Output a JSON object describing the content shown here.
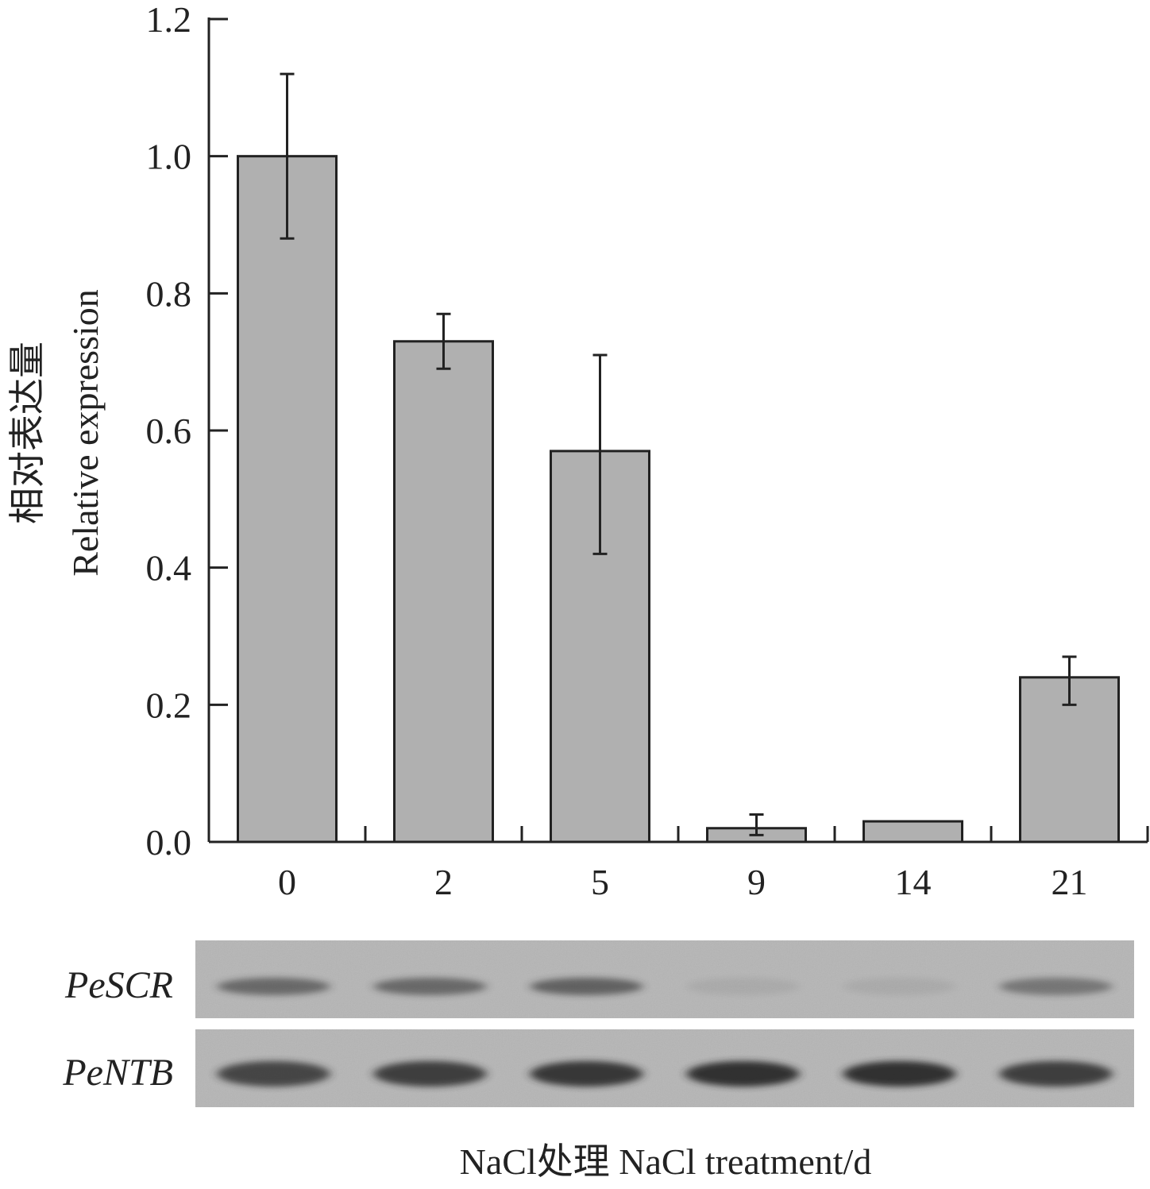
{
  "chart_data": {
    "type": "bar",
    "categories": [
      "0",
      "2",
      "5",
      "9",
      "14",
      "21"
    ],
    "values": [
      1.0,
      0.73,
      0.57,
      0.02,
      0.03,
      0.24
    ],
    "error_bars": [
      [
        0.88,
        1.12
      ],
      [
        0.69,
        0.77
      ],
      [
        0.42,
        0.71
      ],
      [
        0.01,
        0.04
      ],
      [
        0.03,
        0.03
      ],
      [
        0.2,
        0.27
      ]
    ],
    "ylim": [
      0,
      1.2
    ],
    "yticks": [
      "0.0",
      "0.2",
      "0.4",
      "0.6",
      "0.8",
      "1.0",
      "1.2"
    ],
    "ylabel_cn": "相对表达量",
    "ylabel_en": "Relative expression",
    "xlabel": "NaCl处理  NaCl treatment/d",
    "bar_color": "#b0b0b0",
    "grid": false,
    "legend": "none"
  },
  "gel": {
    "rows": [
      {
        "label": "PeSCR",
        "band_intensity": [
          0.55,
          0.55,
          0.6,
          0.08,
          0.08,
          0.45
        ]
      },
      {
        "label": "PeNTB",
        "band_intensity": [
          0.8,
          0.85,
          0.9,
          0.95,
          0.95,
          0.85
        ]
      }
    ]
  }
}
